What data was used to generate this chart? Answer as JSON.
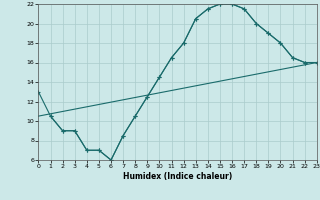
{
  "xlabel": "Humidex (Indice chaleur)",
  "xlim": [
    0,
    23
  ],
  "ylim": [
    6,
    22
  ],
  "xticks": [
    0,
    1,
    2,
    3,
    4,
    5,
    6,
    7,
    8,
    9,
    10,
    11,
    12,
    13,
    14,
    15,
    16,
    17,
    18,
    19,
    20,
    21,
    22,
    23
  ],
  "yticks": [
    6,
    8,
    10,
    12,
    14,
    16,
    18,
    20,
    22
  ],
  "bg_color": "#cce8e8",
  "grid_color": "#aacccc",
  "line_color": "#1a6b6b",
  "line1_x": [
    0,
    1,
    2,
    3,
    4,
    5,
    6,
    7,
    8,
    9,
    10,
    11,
    12,
    13,
    14,
    15,
    16,
    17,
    18,
    19,
    20,
    21,
    22
  ],
  "line1_y": [
    13,
    10.5,
    9,
    9,
    7,
    7,
    6,
    8.5,
    10.5,
    12.5,
    14.5,
    16.5,
    18,
    20.5,
    21.5,
    22,
    22,
    21.5,
    20,
    19,
    18,
    16.5,
    16
  ],
  "line2_x": [
    1,
    2,
    3,
    4,
    5,
    6,
    7,
    8,
    9,
    10,
    11,
    12,
    13,
    14,
    15,
    16,
    17,
    18,
    19,
    20,
    21,
    22,
    23
  ],
  "line2_y": [
    10.5,
    9,
    9,
    7,
    7,
    6,
    8.5,
    10.5,
    12.5,
    14.5,
    16.5,
    18,
    20.5,
    21.5,
    22,
    22,
    21.5,
    20,
    19,
    18,
    16.5,
    16,
    16
  ],
  "line3_x": [
    0,
    23
  ],
  "line3_y": [
    10.5,
    16
  ]
}
